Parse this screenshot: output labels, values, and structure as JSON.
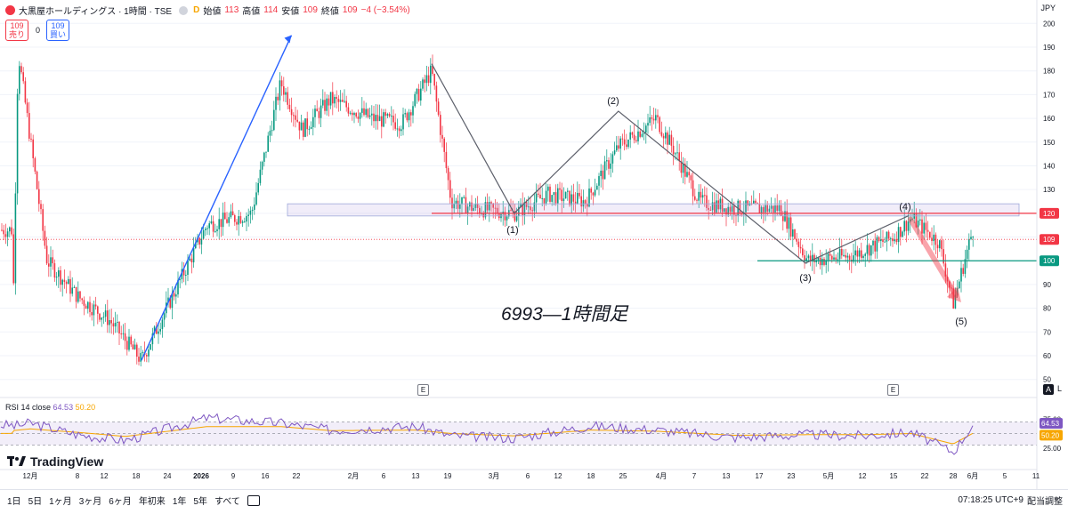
{
  "header": {
    "symbol_title": "大黒屋ホールディングス · 1時間 · TSE",
    "data_flag": "D",
    "open_label": "始値",
    "open_value": "113",
    "high_label": "高値",
    "high_value": "114",
    "low_label": "安値",
    "low_value": "109",
    "close_label": "終値",
    "close_value": "109",
    "change": "−4 (−3.54%)",
    "currency": "JPY"
  },
  "order": {
    "sell_price": "109",
    "sell_label": "売り",
    "spread": "0",
    "buy_price": "109",
    "buy_label": "買い"
  },
  "annotation_title": "6993—1時間足",
  "wave_labels": [
    "(1)",
    "(2)",
    "(3)",
    "(4)",
    "(5)"
  ],
  "rsi": {
    "label": "RSI 14 close",
    "value": "64.53",
    "ma_value": "50.20"
  },
  "logo": {
    "text": "TradingView"
  },
  "bottom_bar": {
    "ranges": [
      "1日",
      "5日",
      "1ヶ月",
      "3ヶ月",
      "6ヶ月",
      "年初来",
      "1年",
      "5年",
      "すべて"
    ],
    "clock": "07:18:25 UTC+9",
    "adjust_label": "配当調整"
  },
  "toolbar": {
    "auto_label": "A",
    "log_label": "L"
  },
  "earnings_marker": "E",
  "colors": {
    "up": "#089981",
    "down": "#f23645",
    "rsi_line": "#7e57c2",
    "rsi_ma": "#f7a600",
    "resistance": "#f23645",
    "support": "#089981",
    "impulse": "#2962ff",
    "zigzag": "#5d606b"
  },
  "chart_data": [
    {
      "type": "line",
      "title": "6993—1時間足",
      "note_series": "hourly candlestick price (JPY); key pivots read from chart",
      "y_axis": {
        "range": [
          50,
          200
        ],
        "ticks": [
          50,
          60,
          70,
          80,
          90,
          100,
          110,
          120,
          130,
          140,
          150,
          160,
          170,
          180,
          190,
          200
        ]
      },
      "x_ticks": [
        "12月",
        "8",
        "12",
        "18",
        "24",
        "2026",
        "9",
        "16",
        "22",
        "2月",
        "6",
        "13",
        "19",
        "3月",
        "6",
        "12",
        "18",
        "25",
        "4月",
        "7",
        "13",
        "17",
        "23",
        "5月",
        "12",
        "15",
        "22",
        "28",
        "6月",
        "5",
        "11"
      ],
      "x": [
        "11/26",
        "11/28",
        "12/5",
        "12/12",
        "12/19",
        "12/25",
        "1/5",
        "1/13",
        "1/19",
        "1/23",
        "1/28",
        "2/4",
        "2/10",
        "2/16",
        "2/20",
        "2/27",
        "3/4",
        "3/10",
        "3/17",
        "3/24",
        "3/31",
        "4/3",
        "4/8",
        "4/14",
        "4/21",
        "4/27",
        "5/8",
        "5/15",
        "5/19",
        "5/25",
        "5/28",
        "6/1"
      ],
      "series": [
        {
          "values": [
            60,
            188,
            100,
            85,
            75,
            58,
            115,
            120,
            175,
            155,
            168,
            160,
            158,
            180,
            125,
            122,
            120,
            128,
            125,
            148,
            160,
            148,
            125,
            122,
            122,
            100,
            102,
            110,
            118,
            108,
            82,
            113
          ]
        }
      ],
      "current_price": 109,
      "horizontal_levels": [
        {
          "value": 120,
          "label": "120",
          "color": "#f23645"
        },
        {
          "value": 100,
          "label": "100",
          "color": "#089981"
        },
        {
          "value": 109,
          "label": "109",
          "color": "#f23645",
          "style": "dotted"
        }
      ],
      "zone": {
        "low": 120,
        "high": 124
      },
      "impulse_arrow": {
        "from": {
          "x": "12/25",
          "y": 58
        },
        "to": {
          "x": "1/19",
          "y": 195
        }
      },
      "elliott_waves": [
        {
          "label": "start",
          "x": "2/16",
          "y": 183
        },
        {
          "label": "(1)",
          "x": "3/4",
          "y": 120
        },
        {
          "label": "(2)",
          "x": "3/24",
          "y": 163
        },
        {
          "label": "(3)",
          "x": "4/27",
          "y": 99
        },
        {
          "label": "(4)",
          "x": "5/19",
          "y": 119
        },
        {
          "label": "(5)",
          "x": "5/28",
          "y": 82
        }
      ]
    },
    {
      "type": "line",
      "title": "RSI 14 close",
      "ylim": [
        0,
        100
      ],
      "y_ticks": [
        25,
        50,
        75
      ],
      "bands": {
        "upper": 70,
        "middle": 50,
        "lower": 30
      },
      "last_value": 64.53,
      "ma_last_value": 50.2,
      "x": [
        "11/26",
        "12/1",
        "12/12",
        "12/22",
        "1/5",
        "1/19",
        "1/28",
        "2/13",
        "2/20",
        "3/4",
        "3/18",
        "3/31",
        "4/14",
        "4/27",
        "5/12",
        "5/19",
        "5/28",
        "6/1"
      ],
      "series": [
        {
          "name": "RSI",
          "values": [
            62,
            68,
            48,
            38,
            77,
            68,
            56,
            62,
            46,
            42,
            63,
            56,
            43,
            48,
            46,
            52,
            18,
            64.53
          ]
        },
        {
          "name": "MA",
          "values": [
            55,
            58,
            52,
            45,
            62,
            62,
            55,
            56,
            50,
            46,
            56,
            54,
            47,
            48,
            48,
            50,
            32,
            50.2
          ]
        }
      ]
    }
  ]
}
